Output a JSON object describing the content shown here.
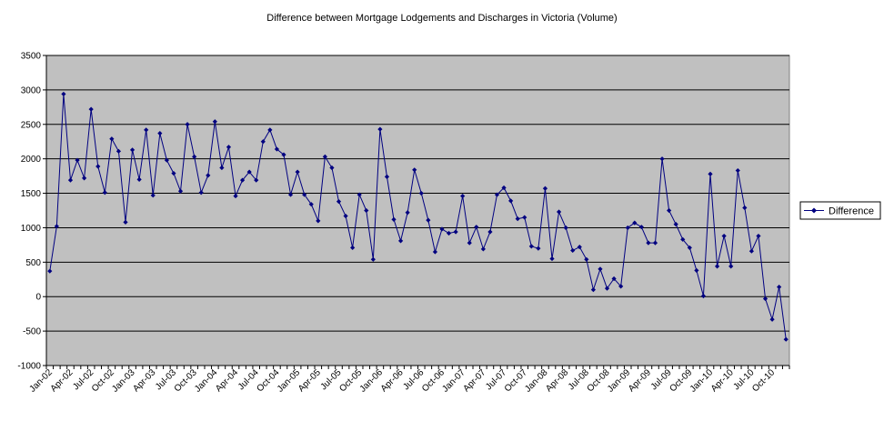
{
  "chart_data": {
    "type": "line",
    "title": "Difference between Mortgage Lodgements and Discharges in Victoria (Volume)",
    "xlabel": "",
    "ylabel": "",
    "ylim": [
      -1000,
      3500
    ],
    "yticks": [
      -1000,
      -500,
      0,
      500,
      1000,
      1500,
      2000,
      2500,
      3000,
      3500
    ],
    "grid": true,
    "legend_position": "right",
    "plot_background": "#c0c0c0",
    "series_color": "#000080",
    "x_tick_labels": [
      "Jan-02",
      "Apr-02",
      "Jul-02",
      "Oct-02",
      "Jan-03",
      "Apr-03",
      "Jul-03",
      "Oct-03",
      "Jan-04",
      "Apr-04",
      "Jul-04",
      "Oct-04",
      "Jan-05",
      "Apr-05",
      "Jul-05",
      "Oct-05",
      "Jan-06",
      "Apr-06",
      "Jul-06",
      "Oct-06",
      "Jan-07",
      "Apr-07",
      "Jul-07",
      "Oct-07",
      "Jan-08",
      "Apr-08",
      "Jul-08",
      "Oct-08",
      "Jan-09",
      "Apr-09",
      "Jul-09",
      "Oct-09",
      "Jan-10",
      "Apr-10",
      "Jul-10",
      "Oct-10"
    ],
    "series": [
      {
        "name": "Difference",
        "start": "Jan-02",
        "frequency": "monthly",
        "values": [
          370,
          1020,
          2940,
          1690,
          1980,
          1720,
          2720,
          1890,
          1510,
          2290,
          2110,
          1080,
          2130,
          1700,
          2420,
          1470,
          2370,
          1980,
          1790,
          1530,
          2500,
          2030,
          1510,
          1760,
          2540,
          1870,
          2170,
          1460,
          1690,
          1810,
          1690,
          2250,
          2420,
          2140,
          2060,
          1480,
          1810,
          1480,
          1340,
          1100,
          2030,
          1870,
          1380,
          1170,
          710,
          1480,
          1250,
          540,
          2430,
          1740,
          1120,
          810,
          1220,
          1840,
          1500,
          1110,
          650,
          980,
          920,
          940,
          1460,
          780,
          1010,
          690,
          940,
          1480,
          1580,
          1390,
          1130,
          1150,
          730,
          700,
          1570,
          550,
          1230,
          1000,
          670,
          720,
          540,
          100,
          400,
          120,
          260,
          150,
          1000,
          1070,
          1010,
          780,
          780,
          2000,
          1250,
          1050,
          830,
          710,
          380,
          10,
          1780,
          440,
          880,
          440,
          1830,
          1290,
          660,
          880,
          -30,
          -330,
          140,
          -620
        ]
      }
    ]
  }
}
